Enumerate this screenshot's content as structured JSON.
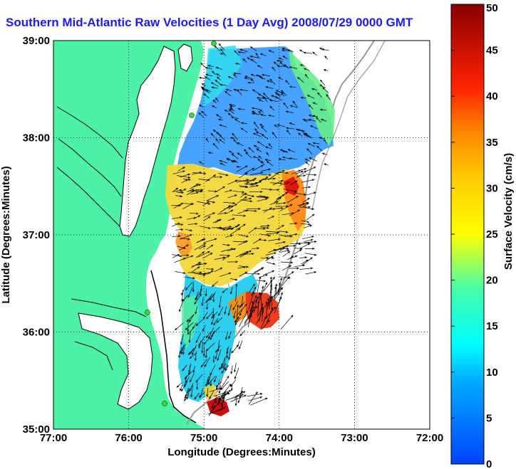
{
  "title": "Southern Mid-Atlantic Raw Velocities (1 Day Avg) 2008/07/29 0000 GMT",
  "colors": {
    "land": "#4cf2a6",
    "title": "#1a1aff",
    "cable": "#33dd33"
  },
  "chart_data": {
    "type": "heatmap",
    "xlabel": "Longitude (Degrees:Minutes)",
    "ylabel": "Latitude (Degrees:Minutes)",
    "x_ticks": [
      "77:00",
      "76:00",
      "75:00",
      "74:00",
      "73:00",
      "72:00"
    ],
    "y_ticks": [
      "39:00",
      "38:00",
      "37:00",
      "36:00",
      "35:00"
    ],
    "xlim": [
      -77,
      -72
    ],
    "ylim": [
      35,
      39
    ],
    "grid": true,
    "colorbar": {
      "label": "Surface Velocity (cm/s)",
      "range": [
        0,
        50
      ],
      "ticks": [
        "0",
        "5",
        "10",
        "15",
        "20",
        "25",
        "30",
        "35",
        "40",
        "45",
        "50"
      ]
    }
  }
}
